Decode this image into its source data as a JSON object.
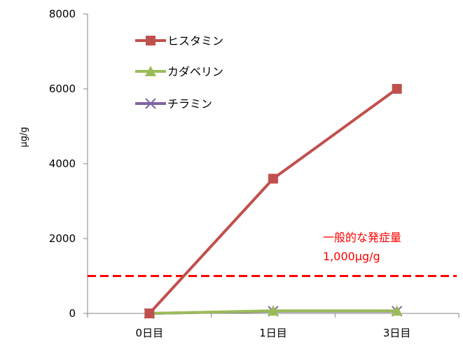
{
  "chart_data": {
    "type": "line",
    "categories": [
      "0日目",
      "1日目",
      "3日目"
    ],
    "series": [
      {
        "name": "ヒスタミン",
        "values": [
          0,
          3600,
          6000
        ],
        "color": "#c0504d",
        "marker": "square"
      },
      {
        "name": "カダベリン",
        "values": [
          0,
          70,
          70
        ],
        "color": "#9bbb59",
        "marker": "triangle"
      },
      {
        "name": "チラミン",
        "values": [
          0,
          60,
          60
        ],
        "color": "#8064a2",
        "marker": "x"
      }
    ],
    "ylabel": "μg/g",
    "ylim": [
      0,
      8000
    ],
    "yticks": [
      "0",
      "2000",
      "4000",
      "6000",
      "8000"
    ],
    "legend_position": "top-left",
    "grid": false,
    "reference_line": {
      "value": 1000,
      "color": "#ff0000",
      "style": "dashed"
    },
    "annotation": {
      "line1": "一般的な発症量",
      "line2": "1,000μg/g",
      "color": "#ff0000"
    },
    "axis_color": "#868686"
  }
}
